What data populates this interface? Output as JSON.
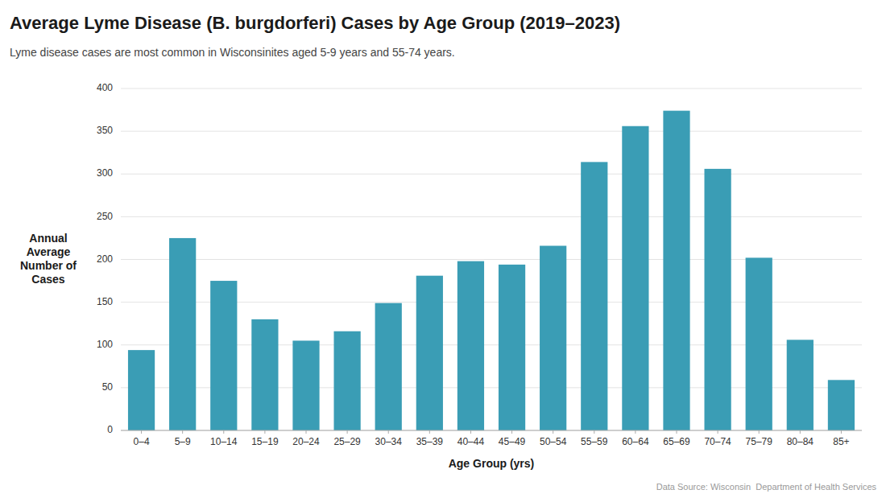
{
  "chart_data": {
    "type": "bar",
    "title": "Average Lyme Disease (B. burgdorferi) Cases by Age Group (2019–2023)",
    "subtitle": "Lyme disease cases are most common in Wisconsinites aged 5-9 years and 55-74 years.",
    "xlabel": "Age Group (yrs)",
    "ylabel": "Annual\nAverage\nNumber of\nCases",
    "annotations": [
      "Data Source: Wisconsin  Department of Health Services"
    ],
    "categories": [
      "0–4",
      "5–9",
      "10–14",
      "15–19",
      "20–24",
      "25–29",
      "30–34",
      "35–39",
      "40–44",
      "45–49",
      "50–54",
      "55–59",
      "60–64",
      "65–69",
      "70–74",
      "75–79",
      "80–84",
      "85+"
    ],
    "values": [
      94,
      225,
      175,
      130,
      105,
      116,
      149,
      181,
      198,
      194,
      216,
      314,
      356,
      374,
      306,
      202,
      106,
      59
    ],
    "color": "#3a9db5",
    "ylim": [
      0,
      400
    ],
    "yticks": [
      0,
      50,
      100,
      150,
      200,
      250,
      300,
      350,
      400
    ],
    "grid": true
  }
}
